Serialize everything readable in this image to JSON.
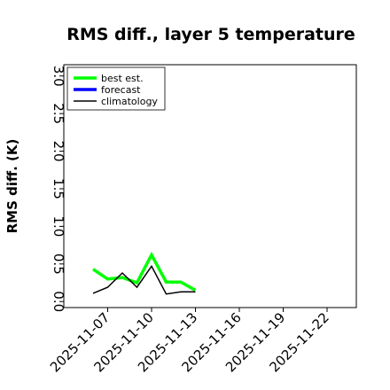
{
  "chart_data": {
    "type": "line",
    "title": "RMS diff., layer 5 temperature",
    "xlabel": "",
    "ylabel": "RMS diff. (K)",
    "xlim": [
      "2025-11-04",
      "2025-11-24"
    ],
    "ylim": [
      -0.08,
      3.15
    ],
    "yticks": [
      0.0,
      0.5,
      1.0,
      1.5,
      2.0,
      2.5,
      3.0
    ],
    "ytick_labels": [
      "0.0",
      "0.5",
      "1.0",
      "1.5",
      "2.0",
      "2.5",
      "3.0"
    ],
    "xticks": [
      "2025-11-07",
      "2025-11-10",
      "2025-11-13",
      "2025-11-16",
      "2025-11-19",
      "2025-11-22"
    ],
    "highlight_tick": "2025-11-13",
    "legend_position": "top-left",
    "grid": false,
    "series": [
      {
        "name": "best est.",
        "color": "#00ff00",
        "x": [
          "2025-11-06",
          "2025-11-07",
          "2025-11-08",
          "2025-11-09",
          "2025-11-10",
          "2025-11-11",
          "2025-11-12",
          "2025-11-13"
        ],
        "values": [
          0.43,
          0.3,
          0.32,
          0.25,
          0.62,
          0.26,
          0.26,
          0.15
        ]
      },
      {
        "name": "forecast",
        "color": "#0000ff",
        "x": [],
        "values": []
      },
      {
        "name": "climatology",
        "color": "#000000",
        "x": [
          "2025-11-06",
          "2025-11-07",
          "2025-11-08",
          "2025-11-09",
          "2025-11-10",
          "2025-11-11",
          "2025-11-12",
          "2025-11-13"
        ],
        "values": [
          0.11,
          0.19,
          0.38,
          0.19,
          0.47,
          0.1,
          0.13,
          0.13
        ]
      }
    ]
  },
  "colors": {
    "highlight_tick": "#2e7d32",
    "axis": "#000000"
  }
}
